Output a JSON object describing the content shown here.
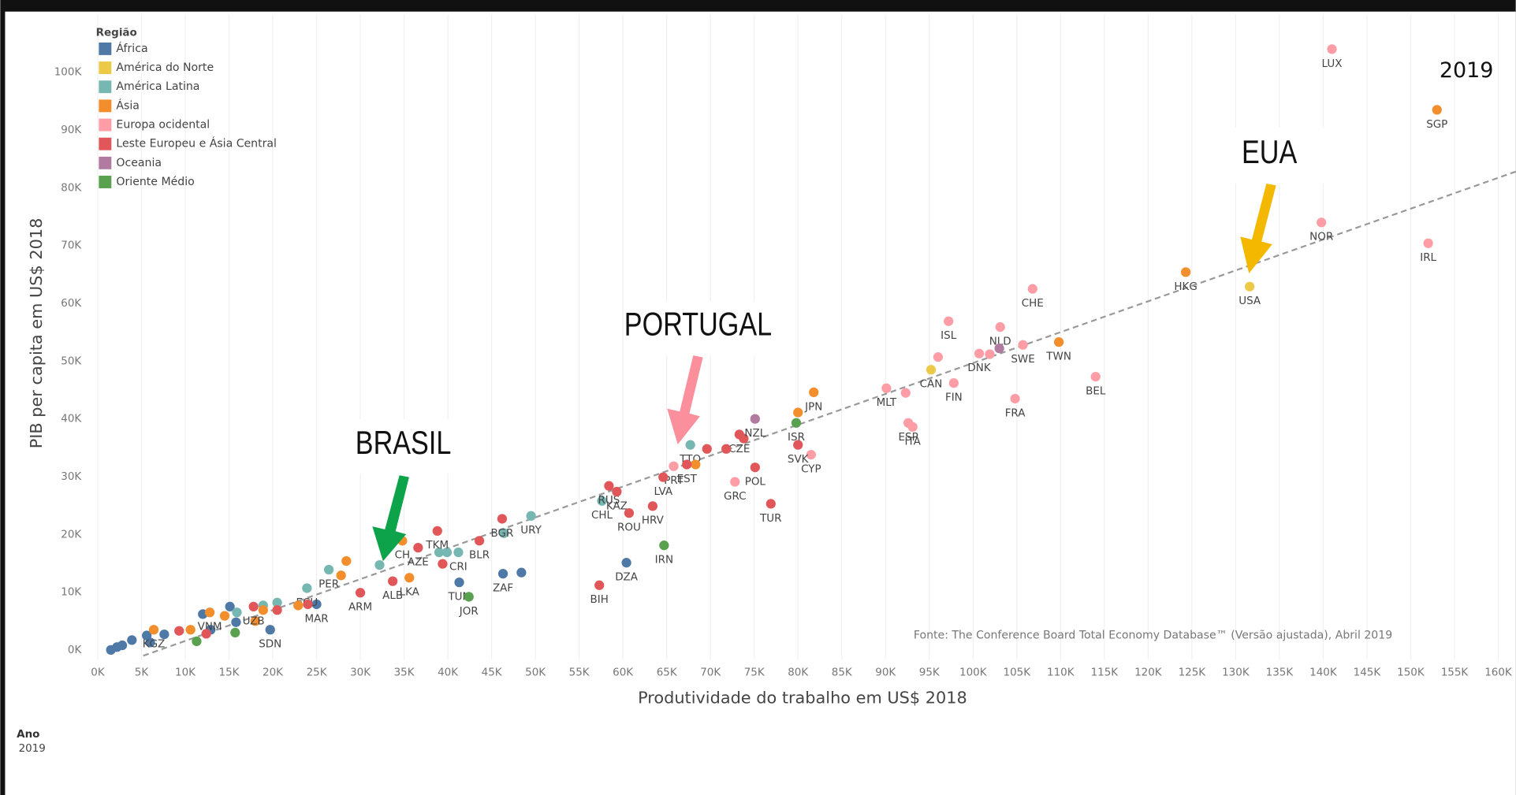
{
  "chart_data": {
    "type": "scatter",
    "year": "2019",
    "x_label": "Produtividade do trabalho em US$ 2018",
    "y_label": "PIB per capita em US$ 2018",
    "legend_title": "Região",
    "legend": "top-left",
    "grid": "x",
    "caption": "Fonte: The Conference Board Total Economy Database™ (Versão ajustada), Abril 2019",
    "filter_title": "Ano",
    "filter_value": "2019",
    "annotations": [
      "EUA",
      "PORTUGAL",
      "BRASIL"
    ],
    "xlim": [
      -1.2,
      162
    ],
    "ylim": [
      -1.7,
      110
    ],
    "xticks": [
      {
        "value": 0,
        "label": "0K"
      },
      {
        "value": 5,
        "label": "5K"
      },
      {
        "value": 10,
        "label": "10K"
      },
      {
        "value": 15,
        "label": "15K"
      },
      {
        "value": 20,
        "label": "20K"
      },
      {
        "value": 25,
        "label": "25K"
      },
      {
        "value": 30,
        "label": "30K"
      },
      {
        "value": 35,
        "label": "35K"
      },
      {
        "value": 40,
        "label": "40K"
      },
      {
        "value": 45,
        "label": "45K"
      },
      {
        "value": 50,
        "label": "50K"
      },
      {
        "value": 55,
        "label": "55K"
      },
      {
        "value": 60,
        "label": "60K"
      },
      {
        "value": 65,
        "label": "65K"
      },
      {
        "value": 70,
        "label": "70K"
      },
      {
        "value": 75,
        "label": "75K"
      },
      {
        "value": 80,
        "label": "80K"
      },
      {
        "value": 85,
        "label": "85K"
      },
      {
        "value": 90,
        "label": "90K"
      },
      {
        "value": 95,
        "label": "95K"
      },
      {
        "value": 100,
        "label": "100K"
      },
      {
        "value": 105,
        "label": "105K"
      },
      {
        "value": 110,
        "label": "110K"
      },
      {
        "value": 115,
        "label": "115K"
      },
      {
        "value": 120,
        "label": "120K"
      },
      {
        "value": 125,
        "label": "125K"
      },
      {
        "value": 130,
        "label": "130K"
      },
      {
        "value": 135,
        "label": "135K"
      },
      {
        "value": 140,
        "label": "140K"
      },
      {
        "value": 145,
        "label": "145K"
      },
      {
        "value": 150,
        "label": "150K"
      },
      {
        "value": 155,
        "label": "155K"
      },
      {
        "value": 160,
        "label": "160K"
      }
    ],
    "yticks": [
      {
        "value": 0,
        "label": "0K"
      },
      {
        "value": 10,
        "label": "10K"
      },
      {
        "value": 20,
        "label": "20K"
      },
      {
        "value": 30,
        "label": "30K"
      },
      {
        "value": 40,
        "label": "40K"
      },
      {
        "value": 50,
        "label": "50K"
      },
      {
        "value": 60,
        "label": "60K"
      },
      {
        "value": 70,
        "label": "70K"
      },
      {
        "value": 80,
        "label": "80K"
      },
      {
        "value": 90,
        "label": "90K"
      },
      {
        "value": 100,
        "label": "100K"
      }
    ],
    "trendline": {
      "x": [
        5.2,
        162
      ],
      "values": [
        -1,
        82.8
      ]
    },
    "series": [
      {
        "name": "África",
        "color": "#4e79a7",
        "x": [
          60.4,
          41.3,
          46.3,
          48.4,
          19.7,
          12,
          25,
          15.1,
          15.8,
          12.9,
          7.6,
          5.6,
          6,
          3.9,
          2.8,
          2.2,
          1.5
        ],
        "values": [
          15.1,
          11.7,
          13.2,
          13.4,
          3.5,
          6.2,
          7.9,
          7.5,
          4.8,
          3.5,
          2.7,
          2.5,
          1.3,
          1.7,
          0.8,
          0.5,
          0
        ],
        "labels": [
          "DZA",
          "TUN",
          "ZAF",
          null,
          "SDN",
          null,
          "MAR",
          null,
          null,
          null,
          null,
          null,
          null,
          null,
          null,
          null,
          null
        ]
      },
      {
        "name": "América do Norte",
        "color": "#edc948",
        "x": [
          131.6,
          95.2
        ],
        "values": [
          62.9,
          48.5
        ],
        "labels": [
          "USA",
          "CAN"
        ]
      },
      {
        "name": "América Latina",
        "color": "#76b7b2",
        "x": [
          67.7,
          57.6,
          49.5,
          46.4,
          41.2,
          39.9,
          39,
          32.2,
          26.4,
          23.9,
          18.9,
          20.5,
          15.9
        ],
        "values": [
          35.5,
          25.8,
          23.2,
          20.2,
          16.9,
          16.9,
          16.9,
          14.7,
          13.9,
          10.7,
          7.7,
          8.2,
          6.5
        ],
        "labels": [
          "TTO",
          "CHL",
          "URY",
          null,
          "CRI",
          null,
          null,
          null,
          "PER",
          "ECU",
          null,
          null,
          null
        ]
      },
      {
        "name": "Ásia",
        "color": "#f28e2b",
        "x": [
          153,
          124.3,
          109.8,
          81.8,
          80,
          68.3,
          34.8,
          28.4,
          27.8,
          35.6,
          12.8,
          6.4,
          10.6,
          14.5,
          18,
          18.9,
          22.9
        ],
        "values": [
          93.5,
          65.4,
          53.3,
          44.6,
          41.1,
          32.1,
          18.9,
          15.4,
          12.9,
          12.5,
          6.5,
          3.5,
          3.5,
          5.9,
          5,
          6.9,
          7.7
        ],
        "labels": [
          "SGP",
          "HKG",
          "TWN",
          "JPN",
          null,
          null,
          "CH",
          null,
          null,
          "LKA",
          "VNM",
          "KGZ",
          null,
          null,
          null,
          null,
          null
        ]
      },
      {
        "name": "Europa ocidental",
        "color": "#ff9da7",
        "x": [
          141,
          139.8,
          152,
          106.8,
          97.2,
          103.1,
          105.7,
          100.7,
          96,
          97.8,
          114,
          104.8,
          90.1,
          92.3,
          92.6,
          93.1,
          81.5,
          65.8,
          72.8,
          101.9
        ],
        "values": [
          104,
          74,
          70.4,
          62.5,
          56.9,
          55.9,
          52.8,
          51.3,
          50.7,
          46.2,
          47.3,
          43.5,
          45.3,
          44.5,
          39.3,
          38.6,
          33.8,
          31.8,
          29.1,
          51.2
        ],
        "labels": [
          "LUX",
          "NOR",
          "IRL",
          "CHE",
          "ISL",
          "NLD",
          "SWE",
          "DNK",
          null,
          "FIN",
          "BEL",
          "FRA",
          "MLT",
          null,
          "ESP",
          "ITA",
          "CYP",
          "PRT",
          "GRC",
          null
        ]
      },
      {
        "name": "Leste Europeu e Ásia Central",
        "color": "#e15759",
        "x": [
          73.3,
          73.8,
          80,
          69.6,
          71.8,
          67.3,
          64.6,
          75.1,
          76.9,
          58.4,
          59.3,
          60.7,
          63.4,
          57.3,
          46.2,
          38.8,
          43.6,
          39.4,
          36.6,
          33.7,
          30,
          17.8,
          9.3,
          12.4,
          20.5,
          24
        ],
        "values": [
          37.3,
          36.6,
          35.5,
          34.8,
          34.8,
          32.1,
          29.9,
          31.6,
          25.3,
          28.4,
          27.4,
          23.7,
          24.9,
          11.2,
          22.7,
          20.6,
          18.9,
          14.9,
          17.7,
          11.9,
          9.9,
          7.5,
          3.3,
          2.8,
          6.9,
          7.9
        ],
        "labels": [
          "CZE",
          null,
          "SVK",
          null,
          null,
          "EST",
          "LVA",
          "POL",
          "TUR",
          "RUS",
          "KAZ",
          "ROU",
          "HRV",
          "BIH",
          "BGR",
          "TKM",
          "BLR",
          null,
          "AZE",
          "ALB",
          "ARM",
          "UZB",
          null,
          null,
          null,
          null
        ]
      },
      {
        "name": "Oceania",
        "color": "#b07aa1",
        "x": [
          75.1,
          103
        ],
        "values": [
          40,
          52.2
        ],
        "labels": [
          "NZL",
          null
        ]
      },
      {
        "name": "Oriente Médio",
        "color": "#59a14f",
        "x": [
          79.8,
          64.7,
          42.4,
          11.3,
          15.7
        ],
        "values": [
          39.3,
          18.1,
          9.2,
          1.5,
          3
        ],
        "labels": [
          "ISR",
          "IRN",
          "JOR",
          null,
          null
        ]
      }
    ]
  }
}
